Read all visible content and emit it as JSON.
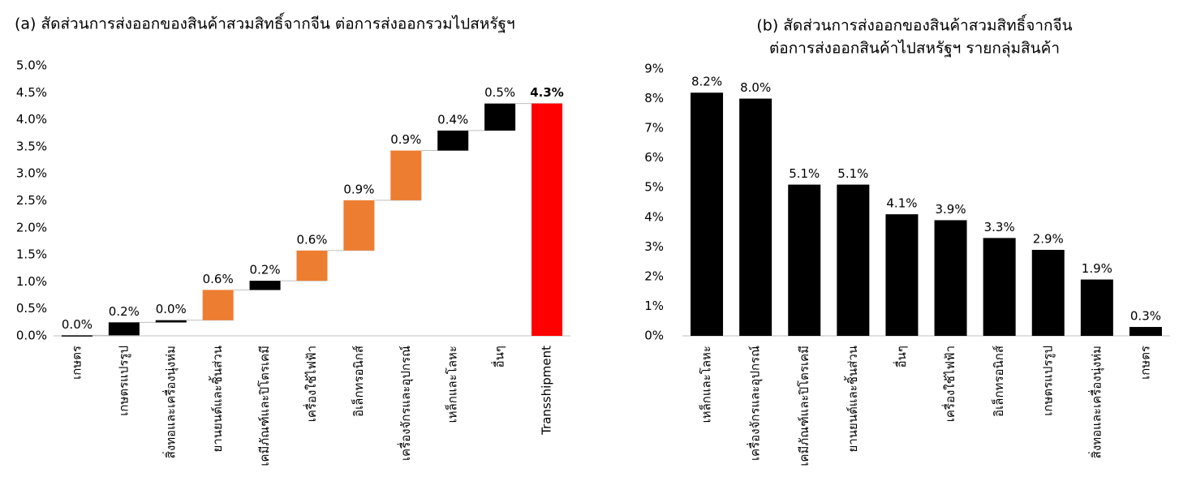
{
  "chart_data": [
    {
      "type": "waterfall",
      "title": "(a) สัดส่วนการส่งออกของสินค้าสวมสิทธิ์จากจีน ต่อการส่งออกรวมไปสหรัฐฯ",
      "categories": [
        "เกษตร",
        "เกษตรแปรรูป",
        "สิ่งทอและเครื่องนุ่งห่ม",
        "ยานยนต์และชิ้นส่วน",
        "เคมีภัณฑ์และปิโตรเคมี",
        "เครื่องใช้ไฟฟ้า",
        "อิเล็กทรอนิกส์",
        "เครื่องจักรและอุปกรณ์",
        "เหล็กและโลหะ",
        "อื่นๆ",
        "Transshipment"
      ],
      "values": [
        0.01,
        0.24,
        0.04,
        0.56,
        0.17,
        0.56,
        0.93,
        0.92,
        0.37,
        0.5,
        4.3
      ],
      "value_labels": [
        "0.0%",
        "0.2%",
        "0.0%",
        "0.6%",
        "0.2%",
        "0.6%",
        "0.9%",
        "0.9%",
        "0.4%",
        "0.5%",
        "4.3%"
      ],
      "colors": [
        "#000000",
        "#000000",
        "#000000",
        "#ed7d31",
        "#000000",
        "#ed7d31",
        "#ed7d31",
        "#ed7d31",
        "#000000",
        "#000000",
        "#ff0000"
      ],
      "ylim": [
        0,
        5
      ],
      "yticks": [
        {
          "value": 0,
          "label": "0.0%"
        },
        {
          "value": 0.5,
          "label": "0.5%"
        },
        {
          "value": 1,
          "label": "1.0%"
        },
        {
          "value": 1.5,
          "label": "1.5%"
        },
        {
          "value": 2,
          "label": "2.0%"
        },
        {
          "value": 2.5,
          "label": "2.5%"
        },
        {
          "value": 3,
          "label": "3.0%"
        },
        {
          "value": 3.5,
          "label": "3.5%"
        },
        {
          "value": 4,
          "label": "4.0%"
        },
        {
          "value": 4.5,
          "label": "4.5%"
        },
        {
          "value": 5,
          "label": "5.0%"
        }
      ],
      "grid": false
    },
    {
      "type": "bar",
      "title": [
        "(b) สัดส่วนการส่งออกของสินค้าสวมสิทธิ์จากจีน",
        "ต่อการส่งออกสินค้าไปสหรัฐฯ รายกลุ่มสินค้า"
      ],
      "categories": [
        "เหล็กและโลหะ",
        "เครื่องจักรและอุปกรณ์",
        "เคมีภัณฑ์และปิโตรเคมี",
        "ยานยนต์และชิ้นส่วน",
        "อื่นๆ",
        "เครื่องใช้ไฟฟ้า",
        "อิเล็กทรอนิกส์",
        "เกษตรแปรรูป",
        "สิ่งทอและเครื่องนุ่งห่ม",
        "เกษตร"
      ],
      "values": [
        8.2,
        8.0,
        5.1,
        5.1,
        4.1,
        3.9,
        3.3,
        2.9,
        1.9,
        0.3
      ],
      "value_labels": [
        "8.2%",
        "8.0%",
        "5.1%",
        "5.1%",
        "4.1%",
        "3.9%",
        "3.3%",
        "2.9%",
        "1.9%",
        "0.3%"
      ],
      "color": "#000000",
      "ylim": [
        0,
        9
      ],
      "yticks": [
        {
          "value": 0,
          "label": "0%"
        },
        {
          "value": 1,
          "label": "1%"
        },
        {
          "value": 2,
          "label": "2%"
        },
        {
          "value": 3,
          "label": "3%"
        },
        {
          "value": 4,
          "label": "4%"
        },
        {
          "value": 5,
          "label": "5%"
        },
        {
          "value": 6,
          "label": "6%"
        },
        {
          "value": 7,
          "label": "7%"
        },
        {
          "value": 8,
          "label": "8%"
        },
        {
          "value": 9,
          "label": "9%"
        }
      ],
      "grid": false
    }
  ]
}
